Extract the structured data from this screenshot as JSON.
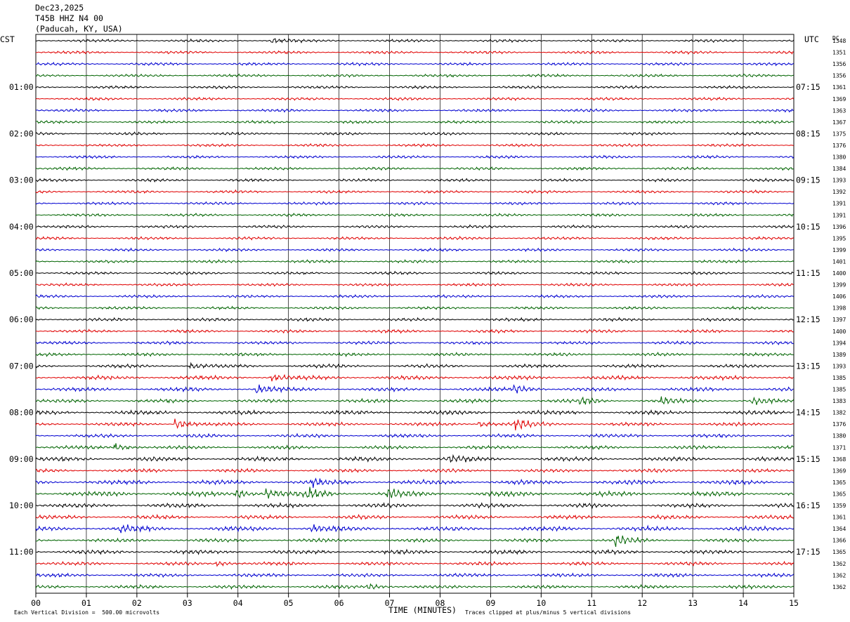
{
  "header": {
    "date": "Dec23,2025",
    "station": "T45B HHZ N4 00",
    "location": "(Paducah, KY, USA)"
  },
  "labels": {
    "left_tz": "CST",
    "right_tz": "UTC",
    "right_col": "DC",
    "xlabel": "TIME (MINUTES)",
    "scale_note": "Each Vertical Division =  500.00 microvolts",
    "clip_note": "Traces clipped at plus/minus 5 vertical divisions"
  },
  "colors": {
    "trace_cycle": [
      "#000000",
      "#e00000",
      "#0000d0",
      "#006400"
    ],
    "grid": "#000000",
    "background": "#ffffff"
  },
  "chart_data": {
    "type": "line",
    "title": "",
    "xlabel": "TIME (MINUTES)",
    "ylabel": "",
    "xlim": [
      0,
      15
    ],
    "x_ticks": [
      "00",
      "01",
      "02",
      "03",
      "04",
      "05",
      "06",
      "07",
      "08",
      "09",
      "10",
      "11",
      "12",
      "13",
      "14",
      "15"
    ],
    "left_time_labels": [
      {
        "row": 4,
        "text": "01:00"
      },
      {
        "row": 8,
        "text": "02:00"
      },
      {
        "row": 12,
        "text": "03:00"
      },
      {
        "row": 16,
        "text": "04:00"
      },
      {
        "row": 20,
        "text": "05:00"
      },
      {
        "row": 24,
        "text": "06:00"
      },
      {
        "row": 28,
        "text": "07:00"
      },
      {
        "row": 32,
        "text": "08:00"
      },
      {
        "row": 36,
        "text": "09:00"
      },
      {
        "row": 40,
        "text": "10:00"
      },
      {
        "row": 44,
        "text": "11:00"
      }
    ],
    "right_time_labels": [
      {
        "row": 4,
        "text": "07:15"
      },
      {
        "row": 8,
        "text": "08:15"
      },
      {
        "row": 12,
        "text": "09:15"
      },
      {
        "row": 16,
        "text": "10:15"
      },
      {
        "row": 20,
        "text": "11:15"
      },
      {
        "row": 24,
        "text": "12:15"
      },
      {
        "row": 28,
        "text": "13:15"
      },
      {
        "row": 32,
        "text": "14:15"
      },
      {
        "row": 36,
        "text": "15:15"
      },
      {
        "row": 40,
        "text": "16:15"
      },
      {
        "row": 44,
        "text": "17:15"
      }
    ],
    "dc_offsets": [
      1348,
      1351,
      1356,
      1356,
      1361,
      1369,
      1363,
      1367,
      1375,
      1376,
      1380,
      1384,
      1393,
      1392,
      1391,
      1391,
      1396,
      1395,
      1399,
      1401,
      1400,
      1399,
      1406,
      1398,
      1397,
      1400,
      1394,
      1389,
      1393,
      1385,
      1385,
      1383,
      1382,
      1376,
      1380,
      1371,
      1368,
      1369,
      1365,
      1365,
      1359,
      1361,
      1364,
      1366,
      1365,
      1362,
      1362,
      1362
    ],
    "row_noise_level": [
      0.8,
      0.8,
      0.8,
      0.8,
      0.8,
      0.8,
      0.8,
      0.8,
      0.8,
      0.8,
      0.8,
      0.8,
      0.8,
      0.8,
      0.8,
      0.8,
      0.8,
      0.8,
      0.8,
      0.8,
      0.8,
      0.8,
      0.8,
      0.8,
      0.9,
      0.9,
      0.9,
      0.9,
      1.0,
      1.2,
      1.1,
      1.0,
      1.2,
      1.0,
      1.0,
      1.0,
      1.2,
      1.0,
      1.3,
      1.4,
      1.2,
      1.1,
      1.3,
      1.0,
      1.2,
      1.0,
      1.0,
      1.0
    ],
    "events": [
      {
        "row": 0,
        "minute": 4.7,
        "amp": 1.6
      },
      {
        "row": 28,
        "minute": 3.1,
        "amp": 1.6
      },
      {
        "row": 29,
        "minute": 4.7,
        "amp": 2.0
      },
      {
        "row": 30,
        "minute": 4.4,
        "amp": 2.6
      },
      {
        "row": 30,
        "minute": 9.5,
        "amp": 3.0
      },
      {
        "row": 31,
        "minute": 10.8,
        "amp": 2.2
      },
      {
        "row": 31,
        "minute": 12.4,
        "amp": 1.8
      },
      {
        "row": 31,
        "minute": 14.2,
        "amp": 2.0
      },
      {
        "row": 33,
        "minute": 2.8,
        "amp": 2.6
      },
      {
        "row": 33,
        "minute": 8.8,
        "amp": 2.0
      },
      {
        "row": 33,
        "minute": 9.5,
        "amp": 3.0
      },
      {
        "row": 35,
        "minute": 1.6,
        "amp": 2.2
      },
      {
        "row": 36,
        "minute": 8.2,
        "amp": 1.6
      },
      {
        "row": 38,
        "minute": 5.5,
        "amp": 1.8
      },
      {
        "row": 39,
        "minute": 4.0,
        "amp": 2.6
      },
      {
        "row": 39,
        "minute": 4.6,
        "amp": 3.0
      },
      {
        "row": 39,
        "minute": 5.4,
        "amp": 3.0
      },
      {
        "row": 39,
        "minute": 7.0,
        "amp": 2.2
      },
      {
        "row": 42,
        "minute": 1.7,
        "amp": 2.0
      },
      {
        "row": 42,
        "minute": 5.5,
        "amp": 1.8
      },
      {
        "row": 43,
        "minute": 11.5,
        "amp": 3.2
      },
      {
        "row": 45,
        "minute": 3.6,
        "amp": 1.6
      },
      {
        "row": 47,
        "minute": 6.6,
        "amp": 1.6
      }
    ]
  }
}
